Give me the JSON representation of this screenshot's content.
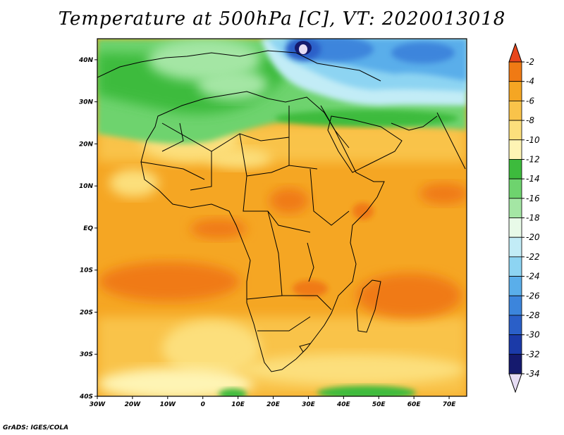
{
  "title": "Temperature at 500hPa [C], VT: 2020013018",
  "credit": "GrADS: IGES/COLA",
  "map": {
    "lon_labels": [
      "30W",
      "20W",
      "10W",
      "0",
      "10E",
      "20E",
      "30E",
      "40E",
      "50E",
      "60E",
      "70E"
    ],
    "lat_labels": [
      "40N",
      "30N",
      "20N",
      "10N",
      "EQ",
      "10S",
      "20S",
      "30S",
      "40S"
    ],
    "lon_range": [
      -30,
      75
    ],
    "lat_range": [
      -40,
      45
    ]
  },
  "colorbar": {
    "labels": [
      "-2",
      "-4",
      "-6",
      "-8",
      "-10",
      "-12",
      "-14",
      "-16",
      "-18",
      "-20",
      "-22",
      "-24",
      "-26",
      "-28",
      "-30",
      "-32",
      "-34"
    ],
    "colors": [
      "#e8461c",
      "#f07a14",
      "#f5a623",
      "#f9c34a",
      "#fcdf7c",
      "#fef4b4",
      "#3dbb3d",
      "#6ed36e",
      "#a4e6a4",
      "#e8fae8",
      "#c2ecf6",
      "#8dd4f2",
      "#5aaeea",
      "#3c85dc",
      "#2a5fc8",
      "#1b3aa8",
      "#151a6e"
    ],
    "top_color": "#e8461c",
    "bottom_color": "#e6dcf4"
  }
}
